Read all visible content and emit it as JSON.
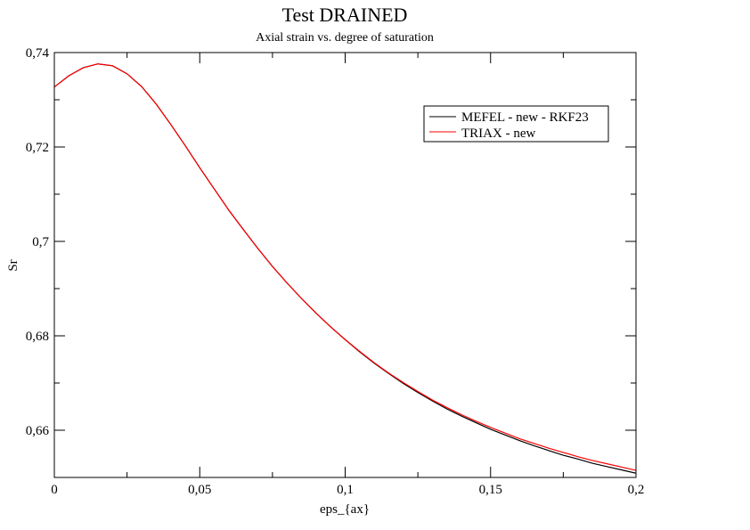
{
  "chart_data": {
    "type": "line",
    "title": "Test DRAINED",
    "subtitle": "Axial strain vs. degree of saturation",
    "xlabel": "eps_{ax}",
    "ylabel": "Sr",
    "xlim": [
      0,
      0.2
    ],
    "ylim": [
      0.65,
      0.74
    ],
    "xticks": [
      0,
      0.05,
      0.1,
      0.15,
      0.2
    ],
    "xtick_labels": [
      "0",
      "0,05",
      "0,1",
      "0,15",
      "0,2"
    ],
    "yticks": [
      0.66,
      0.68,
      0.7,
      0.72,
      0.74
    ],
    "ytick_labels": [
      "0,66",
      "0,68",
      "0,7",
      "0,72",
      "0,74"
    ],
    "grid": false,
    "legend_position": "top-right",
    "series": [
      {
        "name": "MEFEL - new - RKF23",
        "color": "#000000",
        "x": [
          0,
          0.005,
          0.01,
          0.015,
          0.02,
          0.025,
          0.03,
          0.035,
          0.04,
          0.045,
          0.05,
          0.055,
          0.06,
          0.065,
          0.07,
          0.075,
          0.08,
          0.085,
          0.09,
          0.095,
          0.1,
          0.105,
          0.11,
          0.115,
          0.12,
          0.125,
          0.13,
          0.135,
          0.14,
          0.145,
          0.15,
          0.155,
          0.16,
          0.165,
          0.17,
          0.175,
          0.18,
          0.185,
          0.19,
          0.195,
          0.2
        ],
        "y": [
          0.7327,
          0.7351,
          0.7368,
          0.7376,
          0.7372,
          0.7355,
          0.7328,
          0.7291,
          0.7248,
          0.7203,
          0.7156,
          0.7111,
          0.7066,
          0.7025,
          0.6985,
          0.6947,
          0.6912,
          0.6879,
          0.6848,
          0.6819,
          0.6792,
          0.6766,
          0.6742,
          0.672,
          0.6699,
          0.668,
          0.6662,
          0.6645,
          0.663,
          0.6616,
          0.6602,
          0.659,
          0.6578,
          0.6567,
          0.6557,
          0.6547,
          0.6539,
          0.653,
          0.6523,
          0.6516,
          0.6509
        ]
      },
      {
        "name": "TRIAX - new",
        "color": "#ff0000",
        "x": [
          0,
          0.005,
          0.01,
          0.015,
          0.02,
          0.025,
          0.03,
          0.035,
          0.04,
          0.045,
          0.05,
          0.055,
          0.06,
          0.065,
          0.07,
          0.075,
          0.08,
          0.085,
          0.09,
          0.095,
          0.1,
          0.105,
          0.11,
          0.115,
          0.12,
          0.125,
          0.13,
          0.135,
          0.14,
          0.145,
          0.15,
          0.155,
          0.16,
          0.165,
          0.17,
          0.175,
          0.18,
          0.185,
          0.19,
          0.195,
          0.2
        ],
        "y": [
          0.7327,
          0.7351,
          0.7368,
          0.7376,
          0.7372,
          0.7355,
          0.7328,
          0.7291,
          0.7248,
          0.7203,
          0.7156,
          0.7111,
          0.7066,
          0.7025,
          0.6985,
          0.6947,
          0.6912,
          0.6879,
          0.6848,
          0.6819,
          0.6792,
          0.6767,
          0.6743,
          0.6721,
          0.6701,
          0.6682,
          0.6664,
          0.6648,
          0.6633,
          0.6619,
          0.6606,
          0.6594,
          0.6582,
          0.6572,
          0.6562,
          0.6553,
          0.6544,
          0.6536,
          0.6529,
          0.6522,
          0.6515
        ]
      }
    ]
  }
}
